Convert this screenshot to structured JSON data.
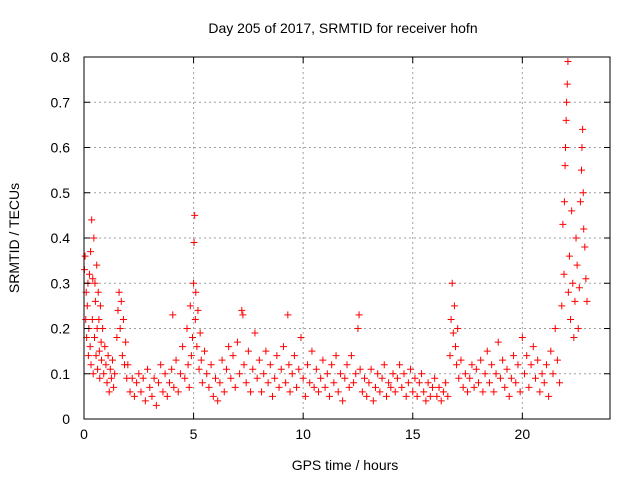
{
  "chart_data": {
    "type": "scatter",
    "title": "Day 205 of 2017, SRMTID for receiver hofn",
    "xlabel": "GPS time / hours",
    "ylabel": "SRMTID / TECUs",
    "xlim": [
      0,
      24
    ],
    "ylim": [
      0,
      0.8
    ],
    "x_ticks": [
      "0",
      "5",
      "10",
      "15",
      "20"
    ],
    "y_ticks": [
      "0",
      "0.1",
      "0.2",
      "0.3",
      "0.4",
      "0.5",
      "0.6",
      "0.7",
      "0.8"
    ],
    "grid": true,
    "series": [
      {
        "name": "SRMTID",
        "color": "#ff0000",
        "marker": "plus",
        "points": [
          [
            0.02,
            0.33
          ],
          [
            0.05,
            0.36
          ],
          [
            0.08,
            0.22
          ],
          [
            0.1,
            0.28
          ],
          [
            0.12,
            0.18
          ],
          [
            0.15,
            0.25
          ],
          [
            0.18,
            0.3
          ],
          [
            0.2,
            0.14
          ],
          [
            0.22,
            0.2
          ],
          [
            0.25,
            0.32
          ],
          [
            0.28,
            0.16
          ],
          [
            0.3,
            0.37
          ],
          [
            0.32,
            0.12
          ],
          [
            0.35,
            0.44
          ],
          [
            0.38,
            0.22
          ],
          [
            0.4,
            0.31
          ],
          [
            0.42,
            0.1
          ],
          [
            0.45,
            0.4
          ],
          [
            0.48,
            0.18
          ],
          [
            0.5,
            0.3
          ],
          [
            0.52,
            0.26
          ],
          [
            0.55,
            0.14
          ],
          [
            0.58,
            0.34
          ],
          [
            0.6,
            0.2
          ],
          [
            0.62,
            0.11
          ],
          [
            0.65,
            0.28
          ],
          [
            0.68,
            0.22
          ],
          [
            0.7,
            0.15
          ],
          [
            0.72,
            0.09
          ],
          [
            0.75,
            0.25
          ],
          [
            0.78,
            0.17
          ],
          [
            0.8,
            0.13
          ],
          [
            0.85,
            0.2
          ],
          [
            0.9,
            0.1
          ],
          [
            0.95,
            0.16
          ],
          [
            1.0,
            0.12
          ],
          [
            1.05,
            0.08
          ],
          [
            1.1,
            0.14
          ],
          [
            1.15,
            0.06
          ],
          [
            1.2,
            0.11
          ],
          [
            1.25,
            0.09
          ],
          [
            1.3,
            0.13
          ],
          [
            1.35,
            0.07
          ],
          [
            1.4,
            0.1
          ],
          [
            1.5,
            0.18
          ],
          [
            1.55,
            0.24
          ],
          [
            1.6,
            0.28
          ],
          [
            1.65,
            0.2
          ],
          [
            1.7,
            0.26
          ],
          [
            1.75,
            0.14
          ],
          [
            1.8,
            0.22
          ],
          [
            1.85,
            0.12
          ],
          [
            1.9,
            0.17
          ],
          [
            1.95,
            0.09
          ],
          [
            2.0,
            0.12
          ],
          [
            2.1,
            0.06
          ],
          [
            2.2,
            0.09
          ],
          [
            2.3,
            0.05
          ],
          [
            2.4,
            0.08
          ],
          [
            2.5,
            0.1
          ],
          [
            2.6,
            0.06
          ],
          [
            2.7,
            0.09
          ],
          [
            2.8,
            0.04
          ],
          [
            2.9,
            0.11
          ],
          [
            3.0,
            0.07
          ],
          [
            3.1,
            0.05
          ],
          [
            3.2,
            0.09
          ],
          [
            3.3,
            0.03
          ],
          [
            3.4,
            0.08
          ],
          [
            3.5,
            0.12
          ],
          [
            3.6,
            0.06
          ],
          [
            3.7,
            0.1
          ],
          [
            3.8,
            0.05
          ],
          [
            3.9,
            0.08
          ],
          [
            4.0,
            0.11
          ],
          [
            4.05,
            0.23
          ],
          [
            4.1,
            0.07
          ],
          [
            4.2,
            0.13
          ],
          [
            4.3,
            0.06
          ],
          [
            4.4,
            0.1
          ],
          [
            4.5,
            0.16
          ],
          [
            4.6,
            0.09
          ],
          [
            4.7,
            0.2
          ],
          [
            4.75,
            0.12
          ],
          [
            4.8,
            0.07
          ],
          [
            4.85,
            0.25
          ],
          [
            4.9,
            0.14
          ],
          [
            4.95,
            0.18
          ],
          [
            5.0,
            0.3
          ],
          [
            5.02,
            0.39
          ],
          [
            5.05,
            0.45
          ],
          [
            5.08,
            0.22
          ],
          [
            5.1,
            0.28
          ],
          [
            5.15,
            0.16
          ],
          [
            5.2,
            0.24
          ],
          [
            5.25,
            0.11
          ],
          [
            5.3,
            0.19
          ],
          [
            5.35,
            0.13
          ],
          [
            5.4,
            0.08
          ],
          [
            5.5,
            0.15
          ],
          [
            5.6,
            0.1
          ],
          [
            5.7,
            0.07
          ],
          [
            5.8,
            0.12
          ],
          [
            5.9,
            0.05
          ],
          [
            6.0,
            0.09
          ],
          [
            6.1,
            0.04
          ],
          [
            6.2,
            0.08
          ],
          [
            6.3,
            0.13
          ],
          [
            6.4,
            0.06
          ],
          [
            6.5,
            0.11
          ],
          [
            6.6,
            0.16
          ],
          [
            6.7,
            0.09
          ],
          [
            6.8,
            0.14
          ],
          [
            6.9,
            0.07
          ],
          [
            7.0,
            0.17
          ],
          [
            7.1,
            0.1
          ],
          [
            7.2,
            0.24
          ],
          [
            7.25,
            0.23
          ],
          [
            7.3,
            0.12
          ],
          [
            7.4,
            0.08
          ],
          [
            7.5,
            0.15
          ],
          [
            7.6,
            0.06
          ],
          [
            7.7,
            0.11
          ],
          [
            7.8,
            0.19
          ],
          [
            7.9,
            0.09
          ],
          [
            8.0,
            0.13
          ],
          [
            8.1,
            0.06
          ],
          [
            8.2,
            0.1
          ],
          [
            8.3,
            0.15
          ],
          [
            8.4,
            0.08
          ],
          [
            8.5,
            0.12
          ],
          [
            8.6,
            0.05
          ],
          [
            8.7,
            0.09
          ],
          [
            8.8,
            0.14
          ],
          [
            8.9,
            0.07
          ],
          [
            9.0,
            0.11
          ],
          [
            9.1,
            0.16
          ],
          [
            9.2,
            0.08
          ],
          [
            9.3,
            0.23
          ],
          [
            9.35,
            0.12
          ],
          [
            9.4,
            0.06
          ],
          [
            9.5,
            0.1
          ],
          [
            9.6,
            0.14
          ],
          [
            9.7,
            0.07
          ],
          [
            9.8,
            0.11
          ],
          [
            9.9,
            0.18
          ],
          [
            10.0,
            0.09
          ],
          [
            10.1,
            0.05
          ],
          [
            10.2,
            0.12
          ],
          [
            10.3,
            0.08
          ],
          [
            10.4,
            0.15
          ],
          [
            10.5,
            0.07
          ],
          [
            10.6,
            0.11
          ],
          [
            10.7,
            0.06
          ],
          [
            10.8,
            0.09
          ],
          [
            10.9,
            0.13
          ],
          [
            11.0,
            0.07
          ],
          [
            11.1,
            0.1
          ],
          [
            11.2,
            0.05
          ],
          [
            11.3,
            0.12
          ],
          [
            11.4,
            0.08
          ],
          [
            11.5,
            0.14
          ],
          [
            11.6,
            0.06
          ],
          [
            11.7,
            0.1
          ],
          [
            11.8,
            0.04
          ],
          [
            11.9,
            0.09
          ],
          [
            12.0,
            0.12
          ],
          [
            12.1,
            0.07
          ],
          [
            12.2,
            0.14
          ],
          [
            12.3,
            0.08
          ],
          [
            12.4,
            0.1
          ],
          [
            12.5,
            0.2
          ],
          [
            12.55,
            0.23
          ],
          [
            12.6,
            0.11
          ],
          [
            12.7,
            0.06
          ],
          [
            12.8,
            0.09
          ],
          [
            12.9,
            0.05
          ],
          [
            13.0,
            0.08
          ],
          [
            13.1,
            0.11
          ],
          [
            13.2,
            0.04
          ],
          [
            13.3,
            0.07
          ],
          [
            13.4,
            0.1
          ],
          [
            13.5,
            0.06
          ],
          [
            13.6,
            0.09
          ],
          [
            13.7,
            0.12
          ],
          [
            13.8,
            0.05
          ],
          [
            13.9,
            0.08
          ],
          [
            14.0,
            0.07
          ],
          [
            14.1,
            0.1
          ],
          [
            14.2,
            0.06
          ],
          [
            14.3,
            0.09
          ],
          [
            14.4,
            0.12
          ],
          [
            14.5,
            0.07
          ],
          [
            14.6,
            0.1
          ],
          [
            14.7,
            0.05
          ],
          [
            14.8,
            0.08
          ],
          [
            14.9,
            0.11
          ],
          [
            15.0,
            0.06
          ],
          [
            15.1,
            0.09
          ],
          [
            15.2,
            0.05
          ],
          [
            15.3,
            0.08
          ],
          [
            15.4,
            0.1
          ],
          [
            15.5,
            0.06
          ],
          [
            15.6,
            0.04
          ],
          [
            15.7,
            0.08
          ],
          [
            15.8,
            0.05
          ],
          [
            15.9,
            0.07
          ],
          [
            16.0,
            0.09
          ],
          [
            16.1,
            0.05
          ],
          [
            16.2,
            0.07
          ],
          [
            16.3,
            0.04
          ],
          [
            16.4,
            0.06
          ],
          [
            16.5,
            0.08
          ],
          [
            16.6,
            0.05
          ],
          [
            16.7,
            0.14
          ],
          [
            16.75,
            0.22
          ],
          [
            16.8,
            0.3
          ],
          [
            16.85,
            0.19
          ],
          [
            16.9,
            0.25
          ],
          [
            16.95,
            0.16
          ],
          [
            17.0,
            0.12
          ],
          [
            17.05,
            0.2
          ],
          [
            17.1,
            0.09
          ],
          [
            17.2,
            0.13
          ],
          [
            17.3,
            0.07
          ],
          [
            17.4,
            0.1
          ],
          [
            17.5,
            0.06
          ],
          [
            17.6,
            0.09
          ],
          [
            17.7,
            0.12
          ],
          [
            17.8,
            0.07
          ],
          [
            17.9,
            0.11
          ],
          [
            18.0,
            0.08
          ],
          [
            18.1,
            0.13
          ],
          [
            18.2,
            0.06
          ],
          [
            18.3,
            0.1
          ],
          [
            18.4,
            0.15
          ],
          [
            18.5,
            0.08
          ],
          [
            18.6,
            0.12
          ],
          [
            18.7,
            0.06
          ],
          [
            18.8,
            0.1
          ],
          [
            18.9,
            0.17
          ],
          [
            19.0,
            0.09
          ],
          [
            19.1,
            0.13
          ],
          [
            19.2,
            0.07
          ],
          [
            19.3,
            0.11
          ],
          [
            19.4,
            0.05
          ],
          [
            19.5,
            0.09
          ],
          [
            19.6,
            0.14
          ],
          [
            19.7,
            0.08
          ],
          [
            19.8,
            0.12
          ],
          [
            19.9,
            0.06
          ],
          [
            20.0,
            0.18
          ],
          [
            20.1,
            0.1
          ],
          [
            20.2,
            0.14
          ],
          [
            20.3,
            0.07
          ],
          [
            20.4,
            0.12
          ],
          [
            20.5,
            0.16
          ],
          [
            20.6,
            0.09
          ],
          [
            20.7,
            0.13
          ],
          [
            20.8,
            0.06
          ],
          [
            20.9,
            0.1
          ],
          [
            21.0,
            0.08
          ],
          [
            21.1,
            0.12
          ],
          [
            21.2,
            0.05
          ],
          [
            21.3,
            0.15
          ],
          [
            21.4,
            0.1
          ],
          [
            21.5,
            0.2
          ],
          [
            21.6,
            0.13
          ],
          [
            21.7,
            0.08
          ],
          [
            21.8,
            0.25
          ],
          [
            21.85,
            0.43
          ],
          [
            21.9,
            0.32
          ],
          [
            21.92,
            0.48
          ],
          [
            21.95,
            0.56
          ],
          [
            21.97,
            0.6
          ],
          [
            22.0,
            0.66
          ],
          [
            22.02,
            0.7
          ],
          [
            22.05,
            0.74
          ],
          [
            22.08,
            0.79
          ],
          [
            22.1,
            0.28
          ],
          [
            22.15,
            0.36
          ],
          [
            22.2,
            0.22
          ],
          [
            22.25,
            0.46
          ],
          [
            22.3,
            0.3
          ],
          [
            22.35,
            0.18
          ],
          [
            22.4,
            0.26
          ],
          [
            22.45,
            0.4
          ],
          [
            22.5,
            0.34
          ],
          [
            22.55,
            0.2
          ],
          [
            22.6,
            0.29
          ],
          [
            22.65,
            0.48
          ],
          [
            22.7,
            0.55
          ],
          [
            22.72,
            0.6
          ],
          [
            22.75,
            0.64
          ],
          [
            22.78,
            0.5
          ],
          [
            22.8,
            0.42
          ],
          [
            22.85,
            0.38
          ],
          [
            22.9,
            0.31
          ],
          [
            22.95,
            0.26
          ]
        ]
      }
    ]
  }
}
